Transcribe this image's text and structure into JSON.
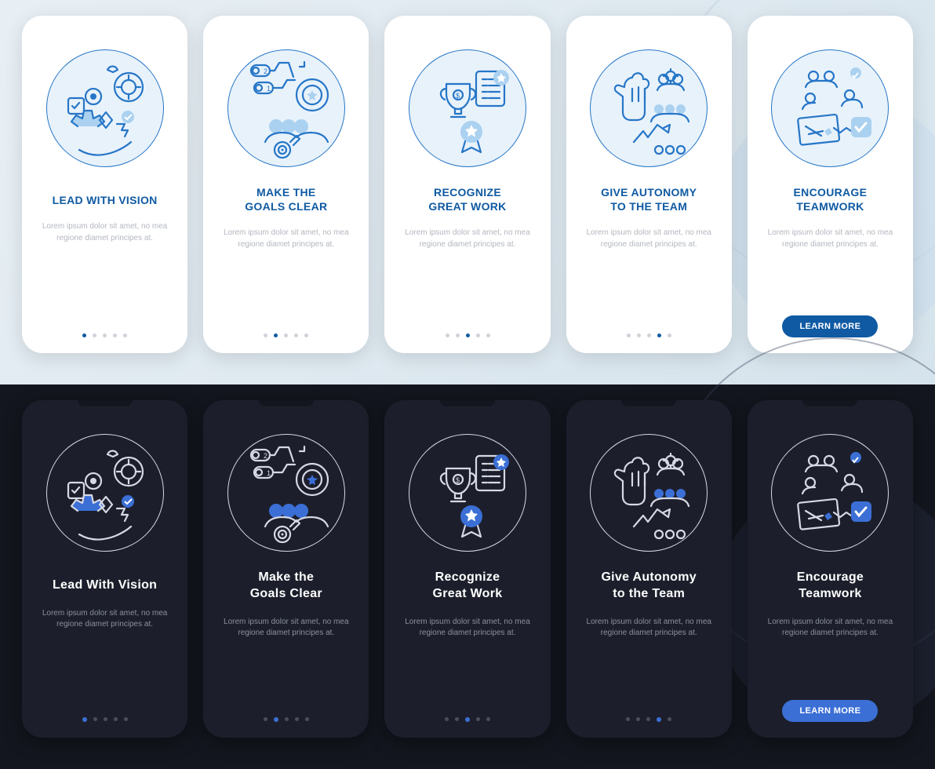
{
  "colors": {
    "light_bg_start": "#e8eff4",
    "light_bg_end": "#d5e3ec",
    "dark_bg": "#14161f",
    "phone_light": "#ffffff",
    "phone_dark": "#1c1f2b",
    "light_title": "#0f5aa3",
    "dark_title": "#ffffff",
    "light_desc": "#b3b7bf",
    "dark_desc": "#8b8f9c",
    "light_dot_inactive": "#cfd3da",
    "light_dot_active": "#0f5aa3",
    "dark_dot_inactive": "#4a4e5c",
    "dark_dot_active": "#3b6fd6",
    "btn_light": "#0f5aa3",
    "btn_dark": "#3b6fd6",
    "light_stroke": "#2676c7",
    "light_fill": "#abd1f0",
    "dark_stroke": "#d6d8e4",
    "dark_fill": "#3b6fd6"
  },
  "lorem": "Lorem ipsum dolor sit amet, no mea regione diamet principes at.",
  "btn_label": "LEARN MORE",
  "light_screens": [
    {
      "title": "LEAD WITH VISION",
      "lines": 1,
      "dots": 5,
      "active": 0,
      "icon": "vision"
    },
    {
      "title": "MAKE THE\nGOALS CLEAR",
      "lines": 2,
      "dots": 5,
      "active": 1,
      "icon": "goals"
    },
    {
      "title": "RECOGNIZE\nGREAT WORK",
      "lines": 2,
      "dots": 5,
      "active": 2,
      "icon": "recognize"
    },
    {
      "title": "GIVE AUTONOMY\nTO THE TEAM",
      "lines": 2,
      "dots": 5,
      "active": 3,
      "icon": "autonomy"
    },
    {
      "title": "ENCOURAGE\nTEAMWORK",
      "lines": 2,
      "button": true,
      "icon": "teamwork"
    }
  ],
  "dark_screens": [
    {
      "title": "Lead With Vision",
      "lines": 1,
      "dots": 5,
      "active": 0,
      "icon": "vision"
    },
    {
      "title": "Make the\nGoals Clear",
      "lines": 2,
      "dots": 5,
      "active": 1,
      "icon": "goals"
    },
    {
      "title": "Recognize\nGreat Work",
      "lines": 2,
      "dots": 5,
      "active": 2,
      "icon": "recognize"
    },
    {
      "title": "Give Autonomy\nto the Team",
      "lines": 2,
      "dots": 5,
      "active": 3,
      "icon": "autonomy"
    },
    {
      "title": "Encourage\nTeamwork",
      "lines": 2,
      "button": true,
      "icon": "teamwork"
    }
  ]
}
